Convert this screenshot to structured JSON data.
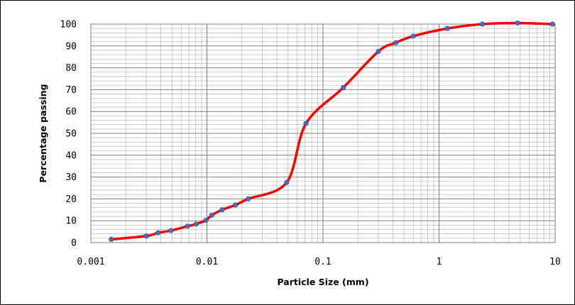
{
  "chart_data": {
    "type": "scatter",
    "title": "",
    "xlabel": "Particle Size (mm)",
    "ylabel": "Percentage passing",
    "x_scale": "log",
    "xlim": [
      0.001,
      10
    ],
    "ylim": [
      0,
      100
    ],
    "x_ticks": [
      "0.001",
      "0.01",
      "0.1",
      "1",
      "10"
    ],
    "y_ticks": [
      "0",
      "10",
      "20",
      "30",
      "40",
      "50",
      "60",
      "70",
      "80",
      "90",
      "100"
    ],
    "grid": "on (major and minor)",
    "legend": "none",
    "series": [
      {
        "line_color": "#ff0000",
        "marker_color": "#4a6fc4",
        "x": [
          0.0015,
          0.003,
          0.0038,
          0.0049,
          0.0068,
          0.0081,
          0.0098,
          0.011,
          0.0135,
          0.0176,
          0.0227,
          0.0486,
          0.0714,
          0.15,
          0.3,
          0.425,
          0.6,
          1.18,
          2.36,
          4.75,
          9.5
        ],
        "y": [
          1.5,
          3,
          4.5,
          5.5,
          7.5,
          8.5,
          10.2,
          12.5,
          15,
          17.2,
          20,
          27.5,
          54.5,
          71,
          87.5,
          91.5,
          94.5,
          98,
          100,
          100.5,
          100
        ]
      }
    ]
  }
}
